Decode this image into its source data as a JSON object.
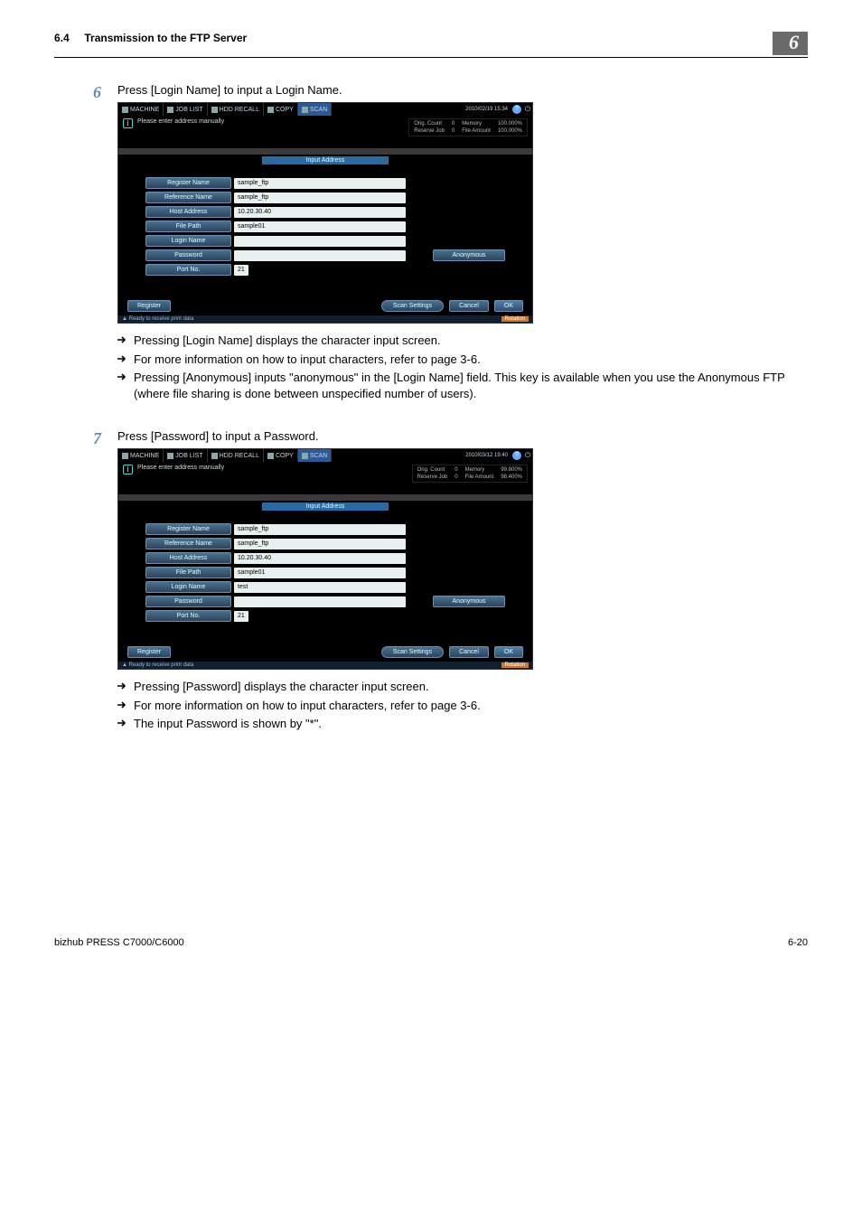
{
  "header": {
    "section_number": "6.4",
    "section_title": "Transmission to the FTP Server",
    "chapter": "6"
  },
  "steps": [
    {
      "num": "6",
      "text": "Press [Login Name] to input a Login Name.",
      "screenshot": {
        "tabs": [
          "MACHINE",
          "JOB LIST",
          "HDD RECALL",
          "COPY",
          "SCAN"
        ],
        "active_tab": "SCAN",
        "date": "2010/02/19 15:34",
        "prompt": "Please enter address manually",
        "status": {
          "orig_count_label": "Orig. Count",
          "orig_count": "0",
          "memory_label": "Memory",
          "memory": "100.000%",
          "reserve_label": "Reserve Job",
          "reserve": "0",
          "file_label": "File Amount",
          "file": "100.000%"
        },
        "section_title": "Input Address",
        "fields": [
          {
            "label": "Register Name",
            "value": "sample_ftp"
          },
          {
            "label": "Reference Name",
            "value": "sample_ftp"
          },
          {
            "label": "Host Address",
            "value": "10.20.30.40"
          },
          {
            "label": "File Path",
            "value": "sample01"
          },
          {
            "label": "Login Name",
            "value": ""
          },
          {
            "label": "Password",
            "value": "",
            "anon": "Anonymous"
          },
          {
            "label": "Port No.",
            "value": "21",
            "narrow": true
          }
        ],
        "buttons": {
          "register": "Register",
          "scan": "Scan Settings",
          "cancel": "Cancel",
          "ok": "OK"
        },
        "footer_left": "Ready to receive print data",
        "footer_right": "Rotation"
      },
      "bullets": [
        "Pressing [Login Name] displays the character input screen.",
        "For more information on how to input characters, refer to page 3-6.",
        "Pressing [Anonymous] inputs \"anonymous\" in the [Login Name] field. This key is available when you use the Anonymous FTP (where file sharing is done between unspecified number of users)."
      ]
    },
    {
      "num": "7",
      "text": "Press [Password] to input a Password.",
      "screenshot": {
        "tabs": [
          "MACHINE",
          "JOB LIST",
          "HDD RECALL",
          "COPY",
          "SCAN"
        ],
        "active_tab": "SCAN",
        "date": "2010/03/12 19:40",
        "prompt": "Please enter address manually",
        "status": {
          "orig_count_label": "Orig. Count",
          "orig_count": "0",
          "memory_label": "Memory",
          "memory": "99.800%",
          "reserve_label": "Reserve Job",
          "reserve": "0",
          "file_label": "File Amount",
          "file": "98.400%"
        },
        "section_title": "Input Address",
        "fields": [
          {
            "label": "Register Name",
            "value": "sample_ftp"
          },
          {
            "label": "Reference Name",
            "value": "sample_ftp"
          },
          {
            "label": "Host Address",
            "value": "10.20.30.40"
          },
          {
            "label": "File Path",
            "value": "sample01"
          },
          {
            "label": "Login Name",
            "value": "test"
          },
          {
            "label": "Password",
            "value": "",
            "anon": "Anonymous"
          },
          {
            "label": "Port No.",
            "value": "21",
            "narrow": true
          }
        ],
        "buttons": {
          "register": "Register",
          "scan": "Scan Settings",
          "cancel": "Cancel",
          "ok": "OK"
        },
        "footer_left": "Ready to receive print data",
        "footer_right": "Rotation"
      },
      "bullets": [
        "Pressing [Password] displays the character input screen.",
        "For more information on how to input characters, refer to page 3-6.",
        "The input Password is shown by \"*\"."
      ]
    }
  ],
  "footer": {
    "left": "bizhub PRESS C7000/C6000",
    "right": "6-20"
  },
  "colors": {
    "step_num": "#5b8db8",
    "badge_bg": "#6a6a6a"
  }
}
